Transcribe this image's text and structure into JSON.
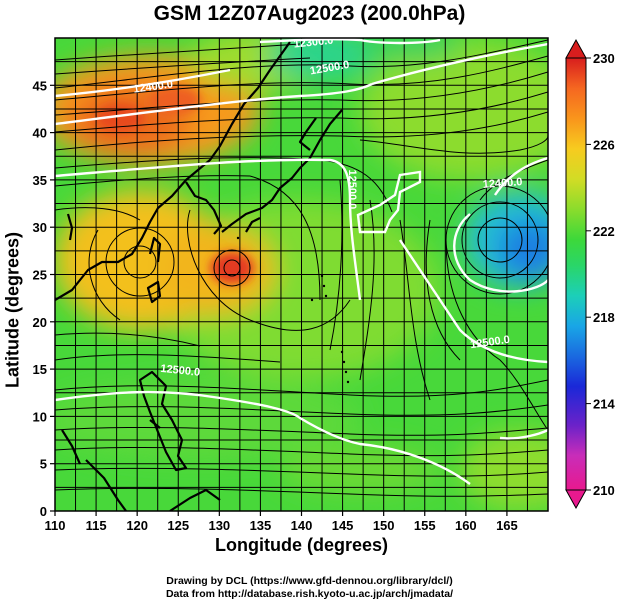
{
  "title": "GSM 12Z07Aug2023 (200.0hPa)",
  "x_axis": {
    "label": "Longitude (degrees)",
    "range": [
      110,
      170
    ],
    "ticks": [
      110,
      115,
      120,
      125,
      130,
      135,
      140,
      145,
      150,
      155,
      160,
      165
    ]
  },
  "y_axis": {
    "label": "Latitude (degrees)",
    "range": [
      0,
      50
    ],
    "ticks": [
      0,
      5,
      10,
      15,
      20,
      25,
      30,
      35,
      40,
      45
    ]
  },
  "colorbar": {
    "range": [
      210,
      230
    ],
    "labels": [
      "230",
      "226",
      "222",
      "218",
      "214",
      "210"
    ],
    "colors": [
      "#e8198e",
      "#c82db9",
      "#6b22c9",
      "#1a28d8",
      "#1a6ae0",
      "#19a6e6",
      "#1ccfb8",
      "#2ad668",
      "#3dd83a",
      "#8bdc2c",
      "#d2dc25",
      "#f7cb1f",
      "#f9951c",
      "#f56720",
      "#e53b21",
      "#d81e1e"
    ]
  },
  "contour_labels": [
    {
      "text": "12500.0",
      "lon": 125.2,
      "lat": 14.5,
      "angle": 6
    },
    {
      "text": "12500.0",
      "lon": 145.8,
      "lat": 34.0,
      "angle": 90
    },
    {
      "text": "12400.0",
      "lon": 164.5,
      "lat": 34.3,
      "angle": -4
    },
    {
      "text": "12400.0",
      "lon": 122.0,
      "lat": 44.5,
      "angle": -8
    },
    {
      "text": "12300.0",
      "lon": 141.5,
      "lat": 49.2,
      "angle": -6
    },
    {
      "text": "12500.0",
      "lon": 143.5,
      "lat": 46.5,
      "angle": -10
    },
    {
      "text": "12500.0",
      "lon": 163.0,
      "lat": 17.5,
      "angle": -8
    }
  ],
  "credits": {
    "line1": "Drawing by DCL (https://www.gfd-dennou.org/library/dcl/)",
    "line2": "Data from http://database.rish.kyoto-u.ac.jp/arch/jmadata/"
  }
}
